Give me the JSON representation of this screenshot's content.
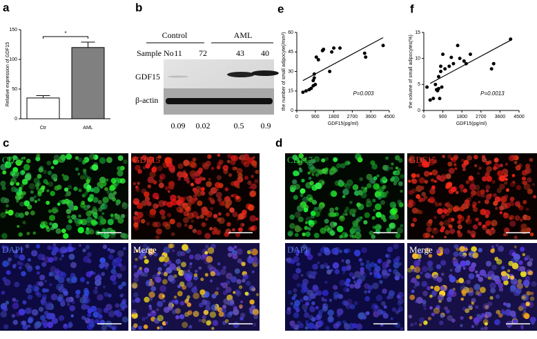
{
  "chart_data": [
    {
      "type": "bar",
      "panel": "a",
      "ylabel": "Relative expression of GDF15",
      "categories": [
        "Ctr",
        "AML"
      ],
      "values": [
        35,
        120
      ],
      "errors": [
        4,
        9
      ],
      "colors": [
        "#ffffff",
        "#808080"
      ],
      "ylim": [
        0,
        150
      ],
      "yticks": [
        0,
        50,
        100,
        150
      ],
      "annotation": "*"
    },
    {
      "type": "scatter",
      "panel": "e",
      "xlabel": "GDF15(pg/ml)",
      "ylabel": "the number of small adipocyte(/mm²)",
      "x": [
        300,
        450,
        600,
        700,
        800,
        800,
        850,
        850,
        900,
        950,
        1050,
        1250,
        1300,
        1600,
        1700,
        1800,
        2100,
        3300,
        3350,
        4200
      ],
      "y": [
        14,
        15,
        16,
        17,
        19,
        23,
        25,
        28,
        20,
        41,
        39,
        46,
        47,
        30,
        45,
        48,
        48,
        44,
        41,
        50
      ],
      "color": "#000000",
      "xlim": [
        0,
        4500
      ],
      "xticks": [
        0,
        900,
        1800,
        2700,
        3600,
        4500
      ],
      "ylim": [
        0,
        60
      ],
      "yticks": [
        0,
        15,
        30,
        45,
        60
      ],
      "annotation": "P=0.003",
      "trendline": {
        "x": [
          300,
          4200
        ],
        "y": [
          23,
          56
        ]
      }
    },
    {
      "type": "scatter",
      "panel": "f",
      "xlabel": "GDF15(pg/ml)",
      "ylabel": "the volume of small adipocytes(%)",
      "x": [
        150,
        300,
        450,
        550,
        600,
        650,
        700,
        700,
        750,
        800,
        800,
        850,
        900,
        1000,
        1200,
        1300,
        1400,
        1600,
        1700,
        1900,
        2000,
        2200,
        3200,
        3300,
        4100
      ],
      "y": [
        4.5,
        2,
        2.3,
        5,
        4,
        3.8,
        6.5,
        4.2,
        2.3,
        7.5,
        8.5,
        4.5,
        10.8,
        8,
        8.5,
        10.2,
        9,
        12.5,
        10,
        9.5,
        9,
        10.8,
        8,
        9,
        13.7
      ],
      "color": "#000000",
      "xlim": [
        0,
        4500
      ],
      "xticks": [
        0,
        900,
        1800,
        2700,
        3600,
        4500
      ],
      "ylim": [
        0,
        15
      ],
      "yticks": [
        0,
        5,
        10,
        15
      ],
      "annotation": "P=0.0013",
      "trendline": {
        "x": [
          300,
          4100
        ],
        "y": [
          5.2,
          13.5
        ]
      }
    }
  ],
  "blot": {
    "panel": "b",
    "groups": [
      "Control",
      "AML"
    ],
    "sample_label": "Sample No",
    "samples": [
      11,
      72,
      43,
      40
    ],
    "rows": [
      "GDF15",
      "β-actin"
    ],
    "ratios": [
      0.09,
      0.02,
      0.5,
      0.9
    ]
  },
  "micro": [
    {
      "panel": "c",
      "labels": [
        "CD34",
        "GDF15",
        "DAPI",
        "Merge"
      ]
    },
    {
      "panel": "d",
      "labels": [
        "CD117",
        "GDF15",
        "DAPI",
        "Merge"
      ]
    }
  ]
}
